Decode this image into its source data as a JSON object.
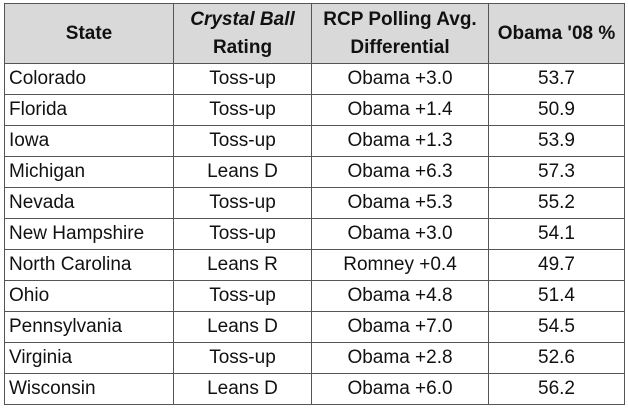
{
  "headers": {
    "state": "State",
    "rating_line1": "Crystal Ball",
    "rating_line2": "Rating",
    "rcp_line1": "RCP Polling Avg.",
    "rcp_line2": "Differential",
    "obama08": "Obama '08 %"
  },
  "rows": [
    {
      "state": "Colorado",
      "rating": "Toss-up",
      "differential": "Obama +3.0",
      "obama08": "53.7"
    },
    {
      "state": "Florida",
      "rating": "Toss-up",
      "differential": "Obama +1.4",
      "obama08": "50.9"
    },
    {
      "state": "Iowa",
      "rating": "Toss-up",
      "differential": "Obama +1.3",
      "obama08": "53.9"
    },
    {
      "state": "Michigan",
      "rating": "Leans D",
      "differential": "Obama +6.3",
      "obama08": "57.3"
    },
    {
      "state": "Nevada",
      "rating": "Toss-up",
      "differential": "Obama +5.3",
      "obama08": "55.2"
    },
    {
      "state": "New Hampshire",
      "rating": "Toss-up",
      "differential": "Obama +3.0",
      "obama08": "54.1"
    },
    {
      "state": "North Carolina",
      "rating": "Leans R",
      "differential": "Romney +0.4",
      "obama08": "49.7"
    },
    {
      "state": "Ohio",
      "rating": "Toss-up",
      "differential": "Obama +4.8",
      "obama08": "51.4"
    },
    {
      "state": "Pennsylvania",
      "rating": "Leans D",
      "differential": "Obama +7.0",
      "obama08": "54.5"
    },
    {
      "state": "Virginia",
      "rating": "Toss-up",
      "differential": "Obama +2.8",
      "obama08": "52.6"
    },
    {
      "state": "Wisconsin",
      "rating": "Leans D",
      "differential": "Obama +6.0",
      "obama08": "56.2"
    }
  ],
  "colors": {
    "header_background": "#d9d9d9",
    "border": "#555555",
    "text": "#111111"
  }
}
